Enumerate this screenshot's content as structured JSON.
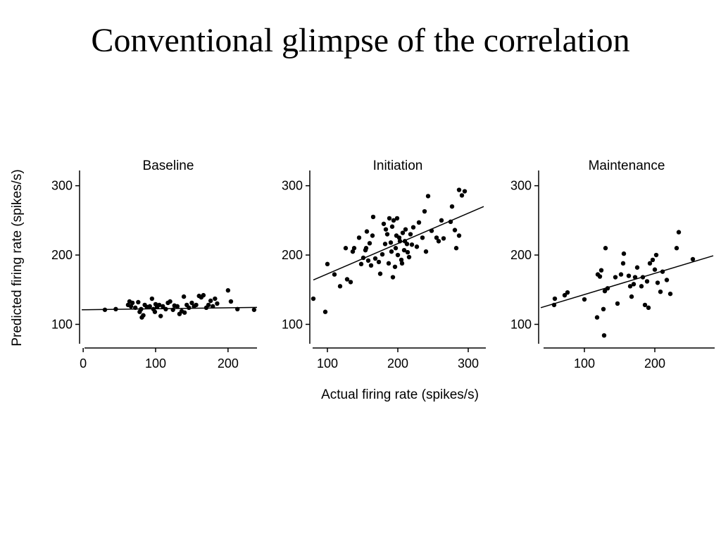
{
  "slide": {
    "title": "Conventional glimpse of the correlation"
  },
  "shared_labels": {
    "ylabel": "Predicted firing rate (spikes/s)",
    "xlabel": "Actual firing rate (spikes/s)"
  },
  "chart_data": [
    {
      "type": "scatter",
      "title": "Baseline",
      "xlim": [
        -5,
        240
      ],
      "ylim": [
        72,
        322
      ],
      "xticks": [
        0,
        100,
        200
      ],
      "yticks": [
        100,
        200,
        300
      ],
      "fit_line": {
        "x": [
          -2,
          240
        ],
        "y": [
          121,
          124.5
        ]
      },
      "points": [
        [
          30,
          121
        ],
        [
          45,
          122
        ],
        [
          62,
          128
        ],
        [
          64,
          133
        ],
        [
          66,
          126
        ],
        [
          68,
          131
        ],
        [
          72,
          124
        ],
        [
          76,
          132
        ],
        [
          78,
          118
        ],
        [
          80,
          122
        ],
        [
          81,
          110
        ],
        [
          83,
          113
        ],
        [
          85,
          128
        ],
        [
          88,
          125
        ],
        [
          92,
          126
        ],
        [
          95,
          137
        ],
        [
          97,
          122
        ],
        [
          99,
          118
        ],
        [
          100,
          129
        ],
        [
          102,
          125
        ],
        [
          105,
          128
        ],
        [
          107,
          112
        ],
        [
          110,
          126
        ],
        [
          114,
          122
        ],
        [
          117,
          131
        ],
        [
          120,
          133
        ],
        [
          124,
          121
        ],
        [
          126,
          127
        ],
        [
          130,
          126
        ],
        [
          133,
          115
        ],
        [
          136,
          119
        ],
        [
          139,
          140
        ],
        [
          140,
          117
        ],
        [
          143,
          128
        ],
        [
          146,
          124
        ],
        [
          150,
          131
        ],
        [
          153,
          126
        ],
        [
          156,
          128
        ],
        [
          160,
          141
        ],
        [
          163,
          139
        ],
        [
          166,
          142
        ],
        [
          170,
          124
        ],
        [
          173,
          128
        ],
        [
          176,
          134
        ],
        [
          179,
          126
        ],
        [
          182,
          137
        ],
        [
          185,
          130
        ],
        [
          200,
          149
        ],
        [
          204,
          133
        ],
        [
          213,
          122
        ],
        [
          236,
          121
        ]
      ]
    },
    {
      "type": "scatter",
      "title": "Initiation",
      "xlim": [
        75,
        325
      ],
      "ylim": [
        72,
        322
      ],
      "xticks": [
        100,
        200,
        300
      ],
      "yticks": [
        100,
        200,
        300
      ],
      "fit_line": {
        "x": [
          80,
          322
        ],
        "y": [
          164,
          270
        ]
      },
      "points": [
        [
          80,
          137
        ],
        [
          97,
          118
        ],
        [
          100,
          187
        ],
        [
          110,
          172
        ],
        [
          118,
          155
        ],
        [
          126,
          210
        ],
        [
          128,
          165
        ],
        [
          133,
          161
        ],
        [
          136,
          205
        ],
        [
          138,
          210
        ],
        [
          145,
          225
        ],
        [
          148,
          187
        ],
        [
          151,
          196
        ],
        [
          154,
          207
        ],
        [
          155,
          210
        ],
        [
          156,
          234
        ],
        [
          158,
          192
        ],
        [
          160,
          217
        ],
        [
          162,
          185
        ],
        [
          164,
          228
        ],
        [
          165,
          255
        ],
        [
          168,
          195
        ],
        [
          173,
          190
        ],
        [
          175,
          173
        ],
        [
          178,
          201
        ],
        [
          180,
          245
        ],
        [
          182,
          216
        ],
        [
          183,
          237
        ],
        [
          185,
          230
        ],
        [
          187,
          188
        ],
        [
          188,
          253
        ],
        [
          190,
          218
        ],
        [
          191,
          205
        ],
        [
          192,
          241
        ],
        [
          193,
          168
        ],
        [
          194,
          250
        ],
        [
          196,
          183
        ],
        [
          197,
          210
        ],
        [
          198,
          228
        ],
        [
          199,
          253
        ],
        [
          200,
          200
        ],
        [
          202,
          225
        ],
        [
          203,
          220
        ],
        [
          205,
          193
        ],
        [
          206,
          188
        ],
        [
          207,
          232
        ],
        [
          209,
          207
        ],
        [
          210,
          220
        ],
        [
          211,
          237
        ],
        [
          213,
          216
        ],
        [
          214,
          204
        ],
        [
          216,
          197
        ],
        [
          218,
          230
        ],
        [
          220,
          215
        ],
        [
          222,
          240
        ],
        [
          227,
          212
        ],
        [
          230,
          247
        ],
        [
          235,
          225
        ],
        [
          238,
          263
        ],
        [
          240,
          205
        ],
        [
          243,
          285
        ],
        [
          248,
          235
        ],
        [
          255,
          225
        ],
        [
          258,
          220
        ],
        [
          262,
          250
        ],
        [
          265,
          224
        ],
        [
          275,
          248
        ],
        [
          277,
          270
        ],
        [
          281,
          236
        ],
        [
          283,
          210
        ],
        [
          287,
          228
        ],
        [
          287,
          294
        ],
        [
          291,
          286
        ],
        [
          295,
          292
        ]
      ]
    },
    {
      "type": "scatter",
      "title": "Maintenance",
      "xlim": [
        35,
        285
      ],
      "ylim": [
        72,
        322
      ],
      "xticks": [
        100,
        200
      ],
      "yticks": [
        100,
        200,
        300
      ],
      "fit_line": {
        "x": [
          38,
          283
        ],
        "y": [
          124,
          199
        ]
      },
      "points": [
        [
          57,
          128
        ],
        [
          58,
          137
        ],
        [
          72,
          142
        ],
        [
          76,
          146
        ],
        [
          100,
          136
        ],
        [
          118,
          110
        ],
        [
          119,
          172
        ],
        [
          122,
          169
        ],
        [
          124,
          178
        ],
        [
          127,
          122
        ],
        [
          128,
          84
        ],
        [
          129,
          148
        ],
        [
          130,
          210
        ],
        [
          133,
          152
        ],
        [
          144,
          168
        ],
        [
          147,
          130
        ],
        [
          152,
          172
        ],
        [
          155,
          188
        ],
        [
          156,
          202
        ],
        [
          163,
          170
        ],
        [
          165,
          155
        ],
        [
          167,
          140
        ],
        [
          170,
          158
        ],
        [
          172,
          168
        ],
        [
          175,
          182
        ],
        [
          181,
          155
        ],
        [
          183,
          168
        ],
        [
          186,
          128
        ],
        [
          189,
          162
        ],
        [
          191,
          124
        ],
        [
          193,
          188
        ],
        [
          197,
          193
        ],
        [
          200,
          179
        ],
        [
          202,
          200
        ],
        [
          204,
          160
        ],
        [
          208,
          147
        ],
        [
          211,
          176
        ],
        [
          217,
          164
        ],
        [
          222,
          144
        ],
        [
          231,
          210
        ],
        [
          234,
          233
        ],
        [
          254,
          194
        ]
      ]
    }
  ]
}
